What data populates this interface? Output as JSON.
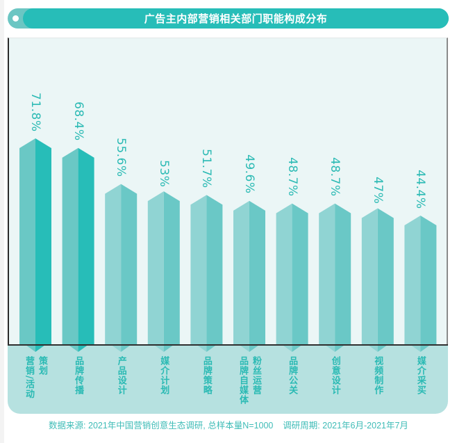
{
  "title": "广告主内部营销相关部门职能构成分布",
  "footer": {
    "source": "数据来源: 2021年中国营销创意生态调研, 总样本量N=1000",
    "period": "调研周期: 2021年6月-2021年7月"
  },
  "colors": {
    "accent": "#27bdb8",
    "accent_light": "#6cc6c3",
    "plot_bg": "#ebf6f6",
    "label_panel_bg": "#b6e1e0",
    "text": "#2bbab4",
    "bar_dark_left": "#6ac8c5",
    "bar_dark_right": "#27bdb8",
    "bar_light_left": "#90d4d3",
    "bar_light_right": "#6ac8c6"
  },
  "chart_data": {
    "type": "bar",
    "title": "广告主内部营销相关部门职能构成分布",
    "xlabel": "",
    "ylabel": "",
    "categories": [
      "营销/活动策划",
      "品牌传播",
      "产品设计",
      "媒介计划",
      "品牌策略",
      "品牌自媒体粉丝运营",
      "品牌公关",
      "创意设计",
      "视频制作",
      "媒介采买"
    ],
    "values": [
      71.8,
      68.4,
      55.6,
      53,
      51.7,
      49.6,
      48.7,
      48.7,
      47,
      44.4
    ],
    "labels": [
      "71.8%",
      "68.4%",
      "55.6%",
      "53%",
      "51.7%",
      "49.6%",
      "48.7%",
      "48.7%",
      "47%",
      "44.4%"
    ],
    "unit": "%",
    "grid": false,
    "legend": null,
    "highlighted": [
      0,
      1
    ]
  },
  "categories_display": [
    {
      "cols": [
        "营销/活动",
        "策划"
      ]
    },
    {
      "cols": [
        "品牌传播"
      ]
    },
    {
      "cols": [
        "产品设计"
      ]
    },
    {
      "cols": [
        "媒介计划"
      ]
    },
    {
      "cols": [
        "品牌策略"
      ]
    },
    {
      "cols": [
        "品牌自媒体",
        "粉丝运营"
      ]
    },
    {
      "cols": [
        "品牌公关"
      ]
    },
    {
      "cols": [
        "创意设计"
      ]
    },
    {
      "cols": [
        "视频制作"
      ]
    },
    {
      "cols": [
        "媒介采买"
      ]
    }
  ]
}
